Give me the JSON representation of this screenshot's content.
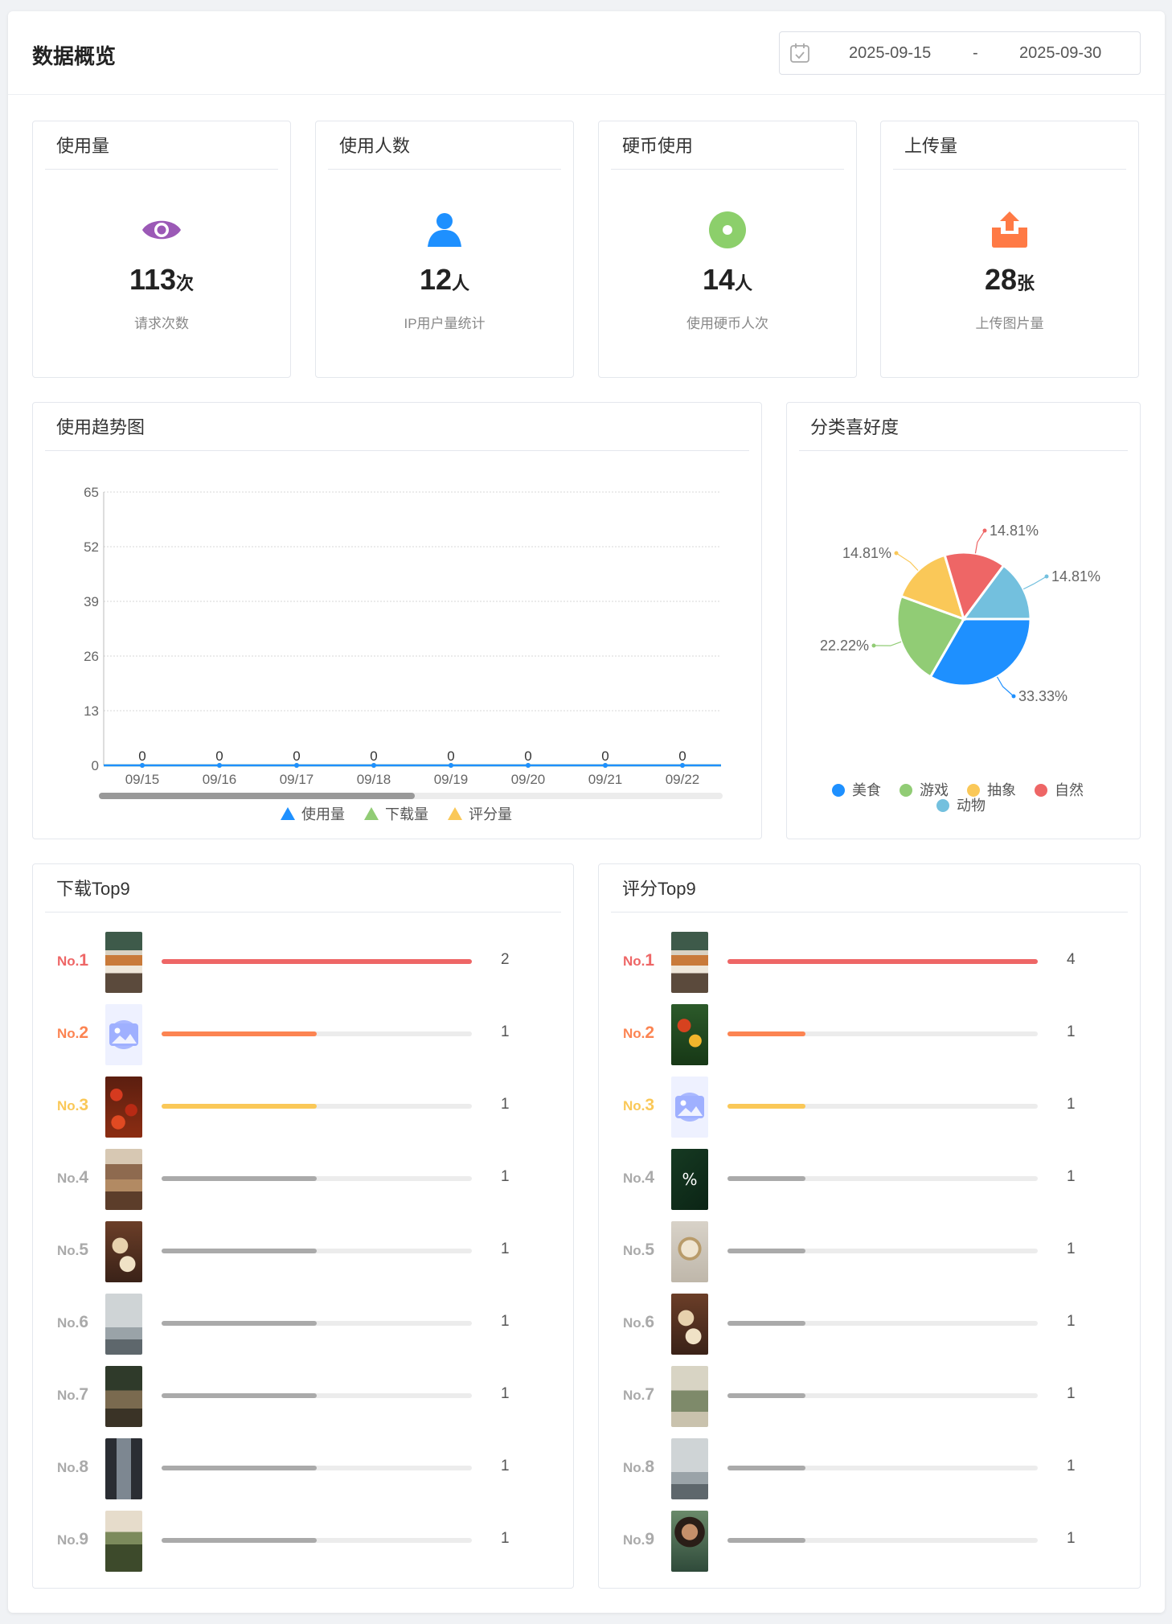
{
  "header": {
    "title": "数据概览",
    "date_start": "2025-09-15",
    "date_separator": "-",
    "date_end": "2025-09-30"
  },
  "stats": [
    {
      "title": "使用量",
      "value": "113",
      "unit": "次",
      "caption": "请求次数",
      "icon": "eye-icon",
      "color": "#9b59b6"
    },
    {
      "title": "使用人数",
      "value": "12",
      "unit": "人",
      "caption": "IP用户量统计",
      "icon": "user-icon",
      "color": "#1e90ff"
    },
    {
      "title": "硬币使用",
      "value": "14",
      "unit": "人",
      "caption": "使用硬币人次",
      "icon": "coin-icon",
      "color": "#8ccf6b"
    },
    {
      "title": "上传量",
      "value": "28",
      "unit": "张",
      "caption": "上传图片量",
      "icon": "upload-icon",
      "color": "#ff7a45"
    }
  ],
  "trend": {
    "title": "使用趋势图",
    "chart_data": {
      "type": "line",
      "x": [
        "09/15",
        "09/16",
        "09/17",
        "09/18",
        "09/19",
        "09/20",
        "09/21",
        "09/22"
      ],
      "series": [
        {
          "name": "使用量",
          "values": [
            0,
            0,
            0,
            0,
            0,
            0,
            0,
            0
          ],
          "color": "#1e90ff"
        },
        {
          "name": "下载量",
          "values": [
            0,
            0,
            0,
            0,
            0,
            0,
            0,
            0
          ],
          "color": "#91cc75"
        },
        {
          "name": "评分量",
          "values": [
            0,
            0,
            0,
            0,
            0,
            0,
            0,
            0
          ],
          "color": "#fac858"
        }
      ],
      "data_labels": [
        "0",
        "0",
        "0",
        "0",
        "0",
        "0",
        "0",
        "0"
      ],
      "y_ticks": [
        "0",
        "13",
        "26",
        "39",
        "52",
        "65"
      ],
      "ylim": [
        0,
        65
      ],
      "grid": true,
      "legend": "bottom"
    }
  },
  "category": {
    "title": "分类喜好度",
    "chart_data": {
      "type": "pie",
      "slices": [
        {
          "name": "美食",
          "value": 33.33,
          "label": "33.33%",
          "color": "#1e90ff"
        },
        {
          "name": "游戏",
          "value": 22.22,
          "label": "22.22%",
          "color": "#91cc75"
        },
        {
          "name": "抽象",
          "value": 14.81,
          "label": "14.81%",
          "color": "#fac858"
        },
        {
          "name": "自然",
          "value": 14.81,
          "label": "14.81%",
          "color": "#ee6666"
        },
        {
          "name": "动物",
          "value": 14.81,
          "label": "14.81%",
          "color": "#73c0de"
        }
      ],
      "legend": "bottom"
    }
  },
  "downloads": {
    "title": "下载Top9",
    "items": [
      {
        "rank": "No.",
        "n": "1",
        "value": 2,
        "label": "2",
        "thumb": "food-plate"
      },
      {
        "rank": "No.",
        "n": "2",
        "value": 1,
        "label": "1",
        "thumb": "image-placeholder-icon"
      },
      {
        "rank": "No.",
        "n": "3",
        "value": 1,
        "label": "1",
        "thumb": "tomatoes"
      },
      {
        "rank": "No.",
        "n": "4",
        "value": 1,
        "label": "1",
        "thumb": "market"
      },
      {
        "rank": "No.",
        "n": "5",
        "value": 1,
        "label": "1",
        "thumb": "cookies"
      },
      {
        "rank": "No.",
        "n": "6",
        "value": 1,
        "label": "1",
        "thumb": "heron"
      },
      {
        "rank": "No.",
        "n": "7",
        "value": 1,
        "label": "1",
        "thumb": "tiger"
      },
      {
        "rank": "No.",
        "n": "8",
        "value": 1,
        "label": "1",
        "thumb": "alley"
      },
      {
        "rank": "No.",
        "n": "9",
        "value": 1,
        "label": "1",
        "thumb": "forest"
      }
    ]
  },
  "ratings": {
    "title": "评分Top9",
    "items": [
      {
        "rank": "No.",
        "n": "1",
        "value": 4,
        "label": "4",
        "thumb": "food-plate"
      },
      {
        "rank": "No.",
        "n": "2",
        "value": 1,
        "label": "1",
        "thumb": "vegetables"
      },
      {
        "rank": "No.",
        "n": "3",
        "value": 1,
        "label": "1",
        "thumb": "image-placeholder-icon"
      },
      {
        "rank": "No.",
        "n": "4",
        "value": 1,
        "label": "1",
        "thumb": "percent-leaves"
      },
      {
        "rank": "No.",
        "n": "5",
        "value": 1,
        "label": "1",
        "thumb": "dishes"
      },
      {
        "rank": "No.",
        "n": "6",
        "value": 1,
        "label": "1",
        "thumb": "cookies"
      },
      {
        "rank": "No.",
        "n": "7",
        "value": 1,
        "label": "1",
        "thumb": "person-portrait"
      },
      {
        "rank": "No.",
        "n": "8",
        "value": 1,
        "label": "1",
        "thumb": "heron"
      },
      {
        "rank": "No.",
        "n": "9",
        "value": 1,
        "label": "1",
        "thumb": "woman-portrait"
      }
    ]
  },
  "rank_colors": [
    "#ee6666",
    "#fc8452",
    "#fac858",
    "#aaaaaa"
  ]
}
